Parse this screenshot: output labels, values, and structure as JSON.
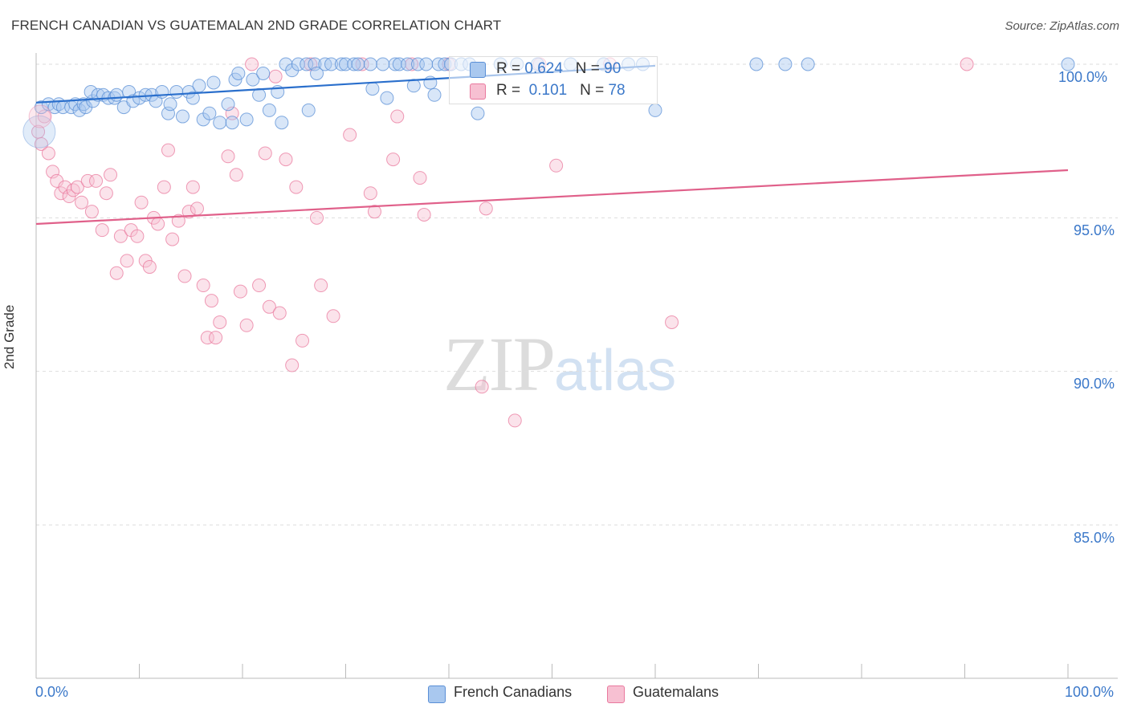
{
  "chart_data": {
    "type": "scatter",
    "title": "FRENCH CANADIAN VS GUATEMALAN 2ND GRADE CORRELATION CHART",
    "source": "Source: ZipAtlas.com",
    "xlabel": "",
    "ylabel": "2nd Grade",
    "xlim": [
      0,
      100
    ],
    "ylim": [
      80.5,
      100.4
    ],
    "x_tick_labels": [
      "0.0%",
      "100.0%"
    ],
    "y_ticks": [
      85.0,
      90.0,
      95.0,
      100.0
    ],
    "y_tick_labels": [
      "85.0%",
      "90.0%",
      "95.0%",
      "100.0%"
    ],
    "watermark": {
      "zip": "ZIP",
      "atlas": "atlas"
    },
    "colors": {
      "french_fill": "#a9c8ef",
      "french_stroke": "#5a8fd6",
      "french_line": "#2a6fcc",
      "guat_fill": "#f7c0d2",
      "guat_stroke": "#e9799e",
      "guat_line": "#e0608a",
      "grid": "#dddddd",
      "axis_label": "#3b78c9"
    },
    "legend": [
      {
        "r_label": "R =",
        "r_value": "0.624",
        "n_label": "N =",
        "n_value": "90"
      },
      {
        "r_label": "R =",
        "r_value": "0.101",
        "n_label": "N =",
        "n_value": "78"
      }
    ],
    "series": [
      {
        "name": "French Canadians",
        "trend": {
          "x": [
            0,
            60
          ],
          "y": [
            98.75,
            99.95
          ]
        },
        "points": [
          [
            0.5,
            98.6
          ],
          [
            1.2,
            98.7
          ],
          [
            1.8,
            98.6
          ],
          [
            2.2,
            98.7
          ],
          [
            2.6,
            98.6
          ],
          [
            3.4,
            98.6
          ],
          [
            3.8,
            98.7
          ],
          [
            4.2,
            98.5
          ],
          [
            4.6,
            98.7
          ],
          [
            4.8,
            98.6
          ],
          [
            5.5,
            98.8
          ],
          [
            5.3,
            99.1
          ],
          [
            6.0,
            99.0
          ],
          [
            6.5,
            99.0
          ],
          [
            7.0,
            98.9
          ],
          [
            7.6,
            98.9
          ],
          [
            7.8,
            99.0
          ],
          [
            8.5,
            98.6
          ],
          [
            9.0,
            99.1
          ],
          [
            9.4,
            98.8
          ],
          [
            10.0,
            98.9
          ],
          [
            10.6,
            99.0
          ],
          [
            11.2,
            99.0
          ],
          [
            11.6,
            98.8
          ],
          [
            12.2,
            99.1
          ],
          [
            12.8,
            98.4
          ],
          [
            13.0,
            98.7
          ],
          [
            13.6,
            99.1
          ],
          [
            14.2,
            98.3
          ],
          [
            14.8,
            99.1
          ],
          [
            15.2,
            98.9
          ],
          [
            15.8,
            99.3
          ],
          [
            16.2,
            98.2
          ],
          [
            16.8,
            98.4
          ],
          [
            17.2,
            99.4
          ],
          [
            17.8,
            98.1
          ],
          [
            18.6,
            98.7
          ],
          [
            19.0,
            98.1
          ],
          [
            19.3,
            99.5
          ],
          [
            19.6,
            99.7
          ],
          [
            20.4,
            98.2
          ],
          [
            21.0,
            99.5
          ],
          [
            21.6,
            99.0
          ],
          [
            22.0,
            99.7
          ],
          [
            22.6,
            98.5
          ],
          [
            23.4,
            99.1
          ],
          [
            23.8,
            98.1
          ],
          [
            24.2,
            100.0
          ],
          [
            24.8,
            99.8
          ],
          [
            25.4,
            100.0
          ],
          [
            26.2,
            100.0
          ],
          [
            26.4,
            98.5
          ],
          [
            27.0,
            100.0
          ],
          [
            27.2,
            99.7
          ],
          [
            28.0,
            100.0
          ],
          [
            28.6,
            100.0
          ],
          [
            29.6,
            100.0
          ],
          [
            30.0,
            100.0
          ],
          [
            30.8,
            100.0
          ],
          [
            31.2,
            100.0
          ],
          [
            32.4,
            100.0
          ],
          [
            32.6,
            99.2
          ],
          [
            33.6,
            100.0
          ],
          [
            34.0,
            98.9
          ],
          [
            34.8,
            100.0
          ],
          [
            35.2,
            100.0
          ],
          [
            36.0,
            100.0
          ],
          [
            36.6,
            99.3
          ],
          [
            37.0,
            100.0
          ],
          [
            37.8,
            100.0
          ],
          [
            38.2,
            99.4
          ],
          [
            38.6,
            99.0
          ],
          [
            39.0,
            100.0
          ],
          [
            39.6,
            100.0
          ],
          [
            40.2,
            100.0
          ],
          [
            41.2,
            100.0
          ],
          [
            42.0,
            100.0
          ],
          [
            42.8,
            98.4
          ],
          [
            45.0,
            100.0
          ],
          [
            46.6,
            100.0
          ],
          [
            48.6,
            100.0
          ],
          [
            51.8,
            100.0
          ],
          [
            55.0,
            100.0
          ],
          [
            57.4,
            100.0
          ],
          [
            58.8,
            100.0
          ],
          [
            60.0,
            98.5
          ],
          [
            69.8,
            100.0
          ],
          [
            72.6,
            100.0
          ],
          [
            74.8,
            100.0
          ],
          [
            100.0,
            100.0
          ]
        ]
      },
      {
        "name": "Guatemalans",
        "trend": {
          "x": [
            0,
            100
          ],
          "y": [
            94.8,
            96.55
          ]
        },
        "points": [
          [
            0.2,
            97.8
          ],
          [
            0.5,
            97.4
          ],
          [
            0.8,
            98.3
          ],
          [
            1.2,
            97.1
          ],
          [
            1.6,
            96.5
          ],
          [
            2.0,
            96.2
          ],
          [
            2.4,
            95.8
          ],
          [
            2.8,
            96.0
          ],
          [
            3.2,
            95.7
          ],
          [
            3.6,
            95.9
          ],
          [
            4.0,
            96.0
          ],
          [
            4.4,
            95.5
          ],
          [
            5.0,
            96.2
          ],
          [
            5.4,
            95.2
          ],
          [
            5.8,
            96.2
          ],
          [
            6.4,
            94.6
          ],
          [
            6.8,
            95.8
          ],
          [
            7.2,
            96.4
          ],
          [
            7.8,
            93.2
          ],
          [
            8.2,
            94.4
          ],
          [
            8.8,
            93.6
          ],
          [
            9.2,
            94.6
          ],
          [
            9.8,
            94.4
          ],
          [
            10.2,
            95.5
          ],
          [
            10.6,
            93.6
          ],
          [
            11.0,
            93.4
          ],
          [
            11.4,
            95.0
          ],
          [
            11.8,
            94.8
          ],
          [
            12.4,
            96.0
          ],
          [
            12.8,
            97.2
          ],
          [
            13.2,
            94.3
          ],
          [
            13.8,
            94.9
          ],
          [
            14.4,
            93.1
          ],
          [
            14.8,
            95.2
          ],
          [
            15.2,
            96.0
          ],
          [
            15.6,
            95.3
          ],
          [
            16.2,
            92.8
          ],
          [
            16.6,
            91.1
          ],
          [
            17.0,
            92.3
          ],
          [
            17.4,
            91.1
          ],
          [
            17.8,
            91.6
          ],
          [
            18.6,
            97.0
          ],
          [
            19.0,
            98.4
          ],
          [
            19.4,
            96.4
          ],
          [
            19.8,
            92.6
          ],
          [
            20.4,
            91.5
          ],
          [
            20.9,
            100.0
          ],
          [
            21.6,
            92.8
          ],
          [
            22.2,
            97.1
          ],
          [
            22.6,
            92.1
          ],
          [
            23.2,
            99.6
          ],
          [
            23.6,
            91.9
          ],
          [
            24.2,
            96.9
          ],
          [
            24.8,
            90.2
          ],
          [
            25.2,
            96.0
          ],
          [
            25.8,
            91.0
          ],
          [
            26.6,
            100.0
          ],
          [
            27.2,
            95.0
          ],
          [
            27.6,
            92.8
          ],
          [
            28.8,
            91.8
          ],
          [
            30.4,
            97.7
          ],
          [
            31.6,
            100.0
          ],
          [
            32.4,
            95.8
          ],
          [
            32.8,
            95.2
          ],
          [
            34.6,
            96.9
          ],
          [
            35.0,
            98.3
          ],
          [
            36.4,
            100.0
          ],
          [
            37.2,
            96.3
          ],
          [
            37.6,
            95.1
          ],
          [
            40.0,
            100.0
          ],
          [
            43.2,
            89.5
          ],
          [
            43.6,
            95.3
          ],
          [
            46.4,
            88.4
          ],
          [
            48.8,
            100.0
          ],
          [
            50.4,
            96.7
          ],
          [
            55.6,
            100.0
          ],
          [
            61.6,
            91.6
          ],
          [
            90.2,
            100.0
          ]
        ]
      }
    ]
  }
}
